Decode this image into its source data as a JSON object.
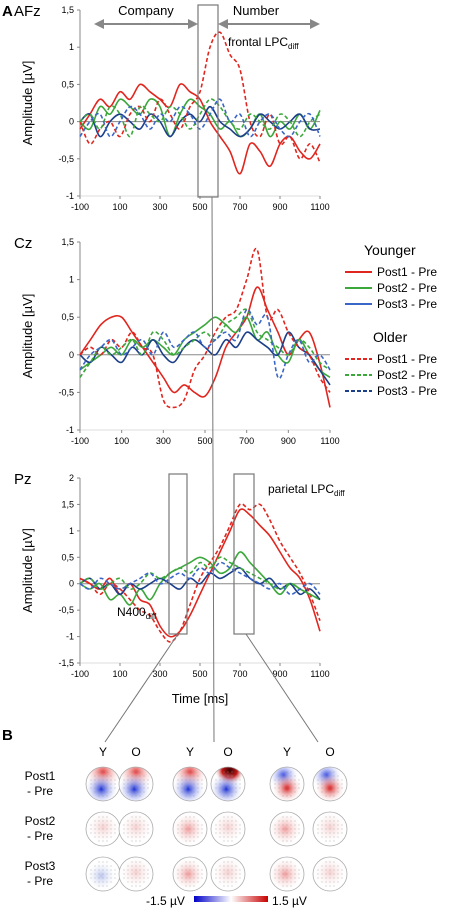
{
  "panel_labels": {
    "a": "A",
    "b": "B"
  },
  "colors": {
    "red": "#e0261f",
    "green": "#3ca83c",
    "blue": "#1c3f8a",
    "blue_light": "#3a66c8",
    "gray": "#666666"
  },
  "panelA": {
    "company_label": "Company",
    "number_label": "Number",
    "xlabel": "Time [ms]",
    "ylabel": "Amplitude [µV]",
    "annotations": {
      "frontal": "frontal LPC",
      "frontal_sub": "diff",
      "parietal": "parietal LPC",
      "parietal_sub": "diff",
      "n400": "N400",
      "n400_sub": "diff"
    },
    "legend": {
      "younger_title": "Younger",
      "older_title": "Older",
      "items": [
        "Post1 - Pre",
        "Post2 - Pre",
        "Post3 - Pre"
      ]
    }
  },
  "chart_data": [
    {
      "type": "line",
      "title": "AFz",
      "ylabel": "Amplitude [µV]",
      "xlim": [
        -100,
        1100
      ],
      "ylim": [
        -1,
        1.5
      ],
      "xticks": [
        "-100",
        "100",
        "300",
        "500",
        "700",
        "900",
        "1100"
      ],
      "yticks": [
        "-1",
        "-0,5",
        "0",
        "0,5",
        "1",
        "1,5"
      ],
      "x": [
        -100,
        -50,
        0,
        50,
        100,
        150,
        200,
        250,
        300,
        350,
        400,
        450,
        500,
        550,
        600,
        650,
        700,
        750,
        800,
        850,
        900,
        950,
        1000,
        1050,
        1100
      ],
      "series": [
        {
          "name": "Younger Post1 - Pre",
          "style": "solid",
          "color": "red",
          "values": [
            -0.1,
            0.1,
            0.3,
            0.2,
            0.4,
            0.3,
            0.5,
            0.4,
            0.3,
            0.2,
            0.5,
            0.4,
            0.3,
            0.0,
            -0.2,
            -0.4,
            -0.7,
            -0.3,
            -0.4,
            -0.6,
            -0.3,
            -0.2,
            -0.4,
            -0.5,
            -0.3
          ]
        },
        {
          "name": "Younger Post2 - Pre",
          "style": "solid",
          "color": "green",
          "values": [
            0.0,
            -0.1,
            0.2,
            0.1,
            0.3,
            0.2,
            0.1,
            0.3,
            0.2,
            -0.2,
            0.1,
            0.3,
            0.2,
            0.1,
            -0.1,
            0.0,
            -0.2,
            -0.1,
            0.1,
            -0.2,
            0.0,
            -0.1,
            0.1,
            -0.1,
            0.15
          ]
        },
        {
          "name": "Younger Post3 - Pre",
          "style": "solid",
          "color": "blue",
          "values": [
            0.0,
            0.1,
            -0.2,
            0.0,
            0.1,
            0.0,
            -0.1,
            0.1,
            0.0,
            -0.2,
            0.0,
            0.1,
            0.0,
            0.2,
            0.0,
            -0.1,
            -0.2,
            -0.1,
            0.1,
            0.0,
            -0.1,
            0.0,
            0.1,
            -0.1,
            -0.1
          ]
        },
        {
          "name": "Older Post1 - Pre",
          "style": "dashed",
          "color": "red",
          "values": [
            0.0,
            -0.3,
            -0.1,
            0.0,
            -0.2,
            0.1,
            0.2,
            0.0,
            0.3,
            0.1,
            -0.1,
            0.2,
            0.4,
            1.0,
            1.2,
            0.9,
            0.7,
            0.0,
            -0.2,
            0.1,
            -0.3,
            -0.2,
            -0.5,
            -0.3,
            -0.55
          ]
        },
        {
          "name": "Older Post2 - Pre",
          "style": "dashed",
          "color": "green",
          "values": [
            0.0,
            0.1,
            -0.1,
            0.2,
            0.1,
            -0.2,
            0.2,
            0.1,
            0.0,
            0.2,
            0.1,
            -0.1,
            0.1,
            0.3,
            0.2,
            0.0,
            -0.1,
            0.1,
            0.0,
            -0.1,
            0.1,
            0.0,
            -0.2,
            0.0,
            0.1
          ]
        },
        {
          "name": "Older Post3 - Pre",
          "style": "dashed",
          "color": "blue_light",
          "values": [
            -0.2,
            0.0,
            0.1,
            -0.2,
            0.0,
            0.2,
            0.1,
            -0.1,
            0.1,
            0.0,
            0.2,
            0.1,
            -0.1,
            0.1,
            0.3,
            0.0,
            0.1,
            -0.2,
            0.0,
            0.1,
            -0.1,
            -0.2,
            0.0,
            0.1,
            -0.2
          ]
        }
      ]
    },
    {
      "type": "line",
      "title": "Cz",
      "ylabel": "Amplitude [µV]",
      "xlim": [
        -100,
        1100
      ],
      "ylim": [
        -1,
        1.5
      ],
      "xticks": [
        "-100",
        "100",
        "300",
        "500",
        "700",
        "900",
        "1100"
      ],
      "yticks": [
        "-1",
        "-0,5",
        "0",
        "0,5",
        "1",
        "1,5"
      ],
      "x": [
        -100,
        -50,
        0,
        50,
        100,
        150,
        200,
        250,
        300,
        350,
        400,
        450,
        500,
        550,
        600,
        650,
        700,
        750,
        800,
        850,
        900,
        950,
        1000,
        1050,
        1100
      ],
      "series": [
        {
          "name": "Younger Post1 - Pre",
          "style": "solid",
          "color": "red",
          "values": [
            0.0,
            0.2,
            0.4,
            0.5,
            0.5,
            0.3,
            0.1,
            -0.1,
            -0.3,
            -0.5,
            -0.4,
            -0.5,
            -0.55,
            -0.3,
            0.1,
            0.3,
            0.5,
            0.9,
            0.6,
            0.3,
            0.0,
            0.2,
            0.3,
            -0.1,
            -0.7
          ]
        },
        {
          "name": "Younger Post2 - Pre",
          "style": "solid",
          "color": "green",
          "values": [
            -0.2,
            -0.1,
            0.0,
            0.1,
            0.0,
            0.2,
            0.1,
            0.2,
            0.1,
            0.0,
            0.2,
            0.3,
            0.4,
            0.5,
            0.4,
            0.3,
            0.5,
            0.2,
            0.3,
            0.0,
            -0.1,
            0.2,
            0.0,
            -0.2,
            -0.3
          ]
        },
        {
          "name": "Younger Post3 - Pre",
          "style": "solid",
          "color": "blue",
          "values": [
            0.0,
            -0.1,
            0.1,
            0.0,
            -0.1,
            0.1,
            0.0,
            0.2,
            0.0,
            -0.1,
            0.1,
            0.2,
            0.1,
            0.0,
            0.2,
            0.1,
            0.3,
            0.2,
            0.1,
            0.0,
            0.3,
            0.1,
            0.0,
            -0.2,
            -0.4
          ]
        },
        {
          "name": "Older Post1 - Pre",
          "style": "dashed",
          "color": "red",
          "values": [
            0.0,
            0.1,
            0.0,
            0.2,
            0.1,
            0.3,
            0.1,
            0.0,
            -0.6,
            -0.7,
            -0.6,
            -0.2,
            0.0,
            0.3,
            0.5,
            0.6,
            1.0,
            1.4,
            0.5,
            0.6,
            0.3,
            0.1,
            0.0,
            -0.3,
            -0.5
          ]
        },
        {
          "name": "Older Post2 - Pre",
          "style": "dashed",
          "color": "green",
          "values": [
            -0.3,
            -0.1,
            0.1,
            0.0,
            0.1,
            0.2,
            0.0,
            0.3,
            0.2,
            0.0,
            0.1,
            0.2,
            0.3,
            0.2,
            0.4,
            0.5,
            0.6,
            0.3,
            0.2,
            0.1,
            0.0,
            0.2,
            0.1,
            -0.1,
            -0.2
          ]
        },
        {
          "name": "Older Post3 - Pre",
          "style": "dashed",
          "color": "blue_light",
          "values": [
            -0.2,
            0.0,
            0.1,
            0.2,
            0.0,
            0.1,
            0.2,
            0.0,
            0.3,
            0.1,
            0.2,
            0.3,
            0.1,
            0.2,
            0.3,
            0.2,
            0.6,
            0.4,
            0.5,
            -0.3,
            0.0,
            0.2,
            -0.1,
            0.0,
            -0.2
          ]
        }
      ]
    },
    {
      "type": "line",
      "title": "Pz",
      "ylabel": "Amplitude [µV]",
      "xlabel": "Time [ms]",
      "xlim": [
        -100,
        1100
      ],
      "ylim": [
        -1.5,
        2
      ],
      "xticks": [
        "-100",
        "100",
        "300",
        "500",
        "700",
        "900",
        "1100"
      ],
      "yticks": [
        "-1,5",
        "-1",
        "-0,5",
        "0",
        "0,5",
        "1",
        "1,5",
        "2"
      ],
      "x": [
        -100,
        -50,
        0,
        50,
        100,
        150,
        200,
        250,
        300,
        350,
        400,
        450,
        500,
        550,
        600,
        650,
        700,
        750,
        800,
        850,
        900,
        950,
        1000,
        1050,
        1100
      ],
      "series": [
        {
          "name": "Younger Post1 - Pre",
          "style": "solid",
          "color": "red",
          "values": [
            0.1,
            0.0,
            -0.1,
            0.1,
            -0.2,
            0.0,
            -0.3,
            -0.4,
            -0.8,
            -1.0,
            -0.9,
            -0.6,
            -0.2,
            0.2,
            0.6,
            1.0,
            1.4,
            1.3,
            1.1,
            0.9,
            0.6,
            0.3,
            0.1,
            -0.3,
            -0.9
          ]
        },
        {
          "name": "Younger Post2 - Pre",
          "style": "solid",
          "color": "green",
          "values": [
            0.0,
            -0.1,
            0.0,
            -0.3,
            -0.2,
            -0.4,
            -0.1,
            -0.3,
            0.0,
            0.2,
            0.3,
            0.4,
            0.5,
            0.4,
            0.2,
            0.3,
            0.6,
            0.4,
            0.2,
            0.0,
            -0.2,
            0.0,
            -0.1,
            -0.2,
            -0.3
          ]
        },
        {
          "name": "Younger Post3 - Pre",
          "style": "solid",
          "color": "blue",
          "values": [
            0.0,
            0.1,
            -0.1,
            0.0,
            -0.2,
            0.0,
            -0.1,
            0.0,
            0.1,
            0.0,
            -0.1,
            0.1,
            0.0,
            0.2,
            0.1,
            0.2,
            0.3,
            0.1,
            0.0,
            0.1,
            -0.1,
            0.0,
            -0.2,
            -0.1,
            -0.3
          ]
        },
        {
          "name": "Older Post1 - Pre",
          "style": "dashed",
          "color": "red",
          "values": [
            0.1,
            0.0,
            -0.2,
            0.0,
            -0.1,
            -0.3,
            -0.5,
            -0.6,
            -0.9,
            -1.1,
            -0.9,
            -0.4,
            0.1,
            0.4,
            0.7,
            1.1,
            1.5,
            1.4,
            1.5,
            1.2,
            0.8,
            0.5,
            0.2,
            -0.2,
            -0.7
          ]
        },
        {
          "name": "Older Post2 - Pre",
          "style": "dashed",
          "color": "green",
          "values": [
            0.0,
            0.1,
            -0.1,
            0.0,
            0.1,
            -0.1,
            0.0,
            0.2,
            0.1,
            0.2,
            0.3,
            0.2,
            0.4,
            0.3,
            0.5,
            0.4,
            0.3,
            0.2,
            0.1,
            0.0,
            -0.1,
            0.0,
            -0.1,
            -0.2,
            -0.3
          ]
        },
        {
          "name": "Older Post3 - Pre",
          "style": "dashed",
          "color": "blue_light",
          "values": [
            0.0,
            -0.1,
            0.1,
            0.0,
            -0.1,
            0.0,
            0.1,
            0.2,
            0.0,
            0.1,
            0.2,
            0.1,
            0.3,
            0.2,
            0.4,
            0.3,
            0.2,
            0.1,
            0.0,
            -0.1,
            0.0,
            -0.2,
            -0.1,
            0.0,
            -0.2
          ]
        }
      ]
    }
  ],
  "panelB": {
    "col_labels": [
      "Y",
      "O",
      "Y",
      "O",
      "Y",
      "O"
    ],
    "row_labels": [
      [
        "Post1",
        "- Pre"
      ],
      [
        "Post2",
        "- Pre"
      ],
      [
        "Post3",
        "- Pre"
      ]
    ],
    "colorbar": {
      "min_label": "-1.5 µV",
      "max_label": "1.5 µV"
    },
    "topomaps": [
      [
        "front-red-back-blue",
        "front-red-back-blue",
        "front-red-back-blue",
        "front-dark-back-blue",
        "center-red",
        "center-red"
      ],
      [
        "faint",
        "faint",
        "faint-red",
        "faint",
        "faint-red",
        "faint"
      ],
      [
        "faint-blue",
        "faint",
        "faint-red",
        "faint",
        "faint-red",
        "faint"
      ]
    ]
  }
}
